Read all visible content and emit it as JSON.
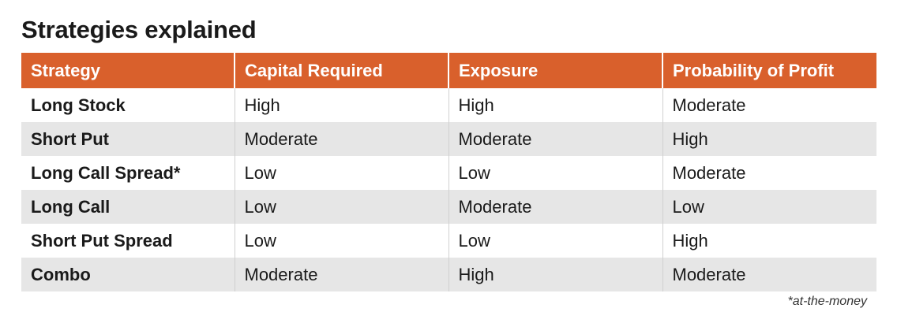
{
  "chart_data": {
    "type": "table",
    "title": "Strategies explained",
    "columns": [
      "Strategy",
      "Capital Required",
      "Exposure",
      "Probability of Profit"
    ],
    "rows": [
      [
        "Long Stock",
        "High",
        "High",
        "Moderate"
      ],
      [
        "Short Put",
        "Moderate",
        "Moderate",
        "High"
      ],
      [
        "Long Call Spread*",
        "Low",
        "Low",
        "Moderate"
      ],
      [
        "Long Call",
        "Low",
        "Moderate",
        "Low"
      ],
      [
        "Short Put Spread",
        "Low",
        "Low",
        "High"
      ],
      [
        "Combo",
        "Moderate",
        "High",
        "Moderate"
      ]
    ],
    "footnote": "*at-the-money",
    "header_color": "#d9602c",
    "stripe_color": "#e6e6e6"
  }
}
